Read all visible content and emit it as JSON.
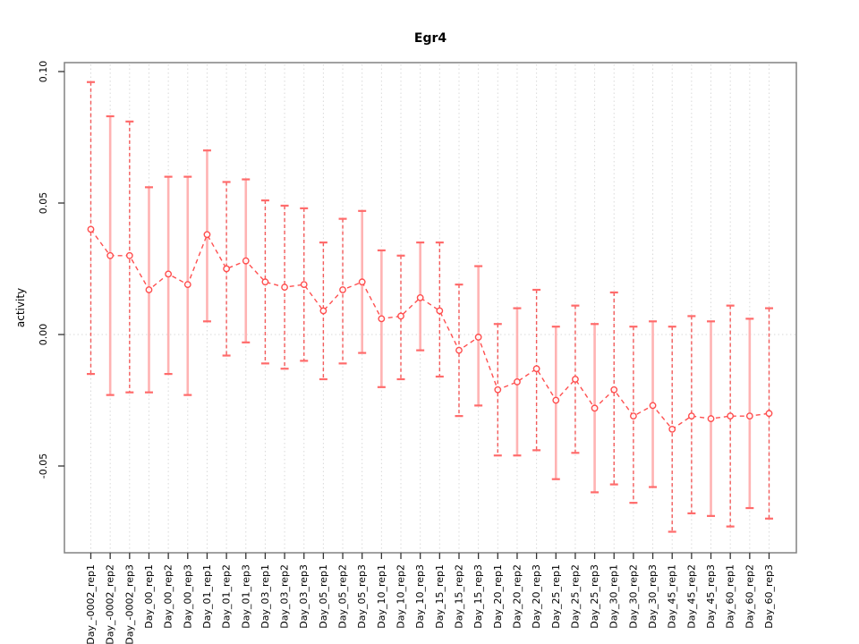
{
  "chart_data": {
    "type": "line",
    "subtype": "points-with-error-bars",
    "title": "Egr4",
    "xlabel": "",
    "ylabel": "activity",
    "ylim": [
      -0.083,
      0.103
    ],
    "yticks": [
      {
        "value": 0.1,
        "label": "0.10"
      },
      {
        "value": 0.05,
        "label": "0.05"
      },
      {
        "value": 0.0,
        "label": "0.00"
      },
      {
        "value": -0.05,
        "label": "-0.05"
      }
    ],
    "grid": "vertical-dotted-per-category",
    "zero_reference_line": true,
    "legend": "none",
    "categories": [
      "Day_-0002_rep1",
      "Day_-0002_rep2",
      "Day_-0002_rep3",
      "Day_00_rep1",
      "Day_00_rep2",
      "Day_00_rep3",
      "Day_01_rep1",
      "Day_01_rep2",
      "Day_01_rep3",
      "Day_03_rep1",
      "Day_03_rep2",
      "Day_03_rep3",
      "Day_05_rep1",
      "Day_05_rep2",
      "Day_05_rep3",
      "Day_10_rep1",
      "Day_10_rep2",
      "Day_10_rep3",
      "Day_15_rep1",
      "Day_15_rep2",
      "Day_15_rep3",
      "Day_20_rep1",
      "Day_20_rep2",
      "Day_20_rep3",
      "Day_25_rep1",
      "Day_25_rep2",
      "Day_25_rep3",
      "Day_30_rep1",
      "Day_30_rep2",
      "Day_30_rep3",
      "Day_45_rep1",
      "Day_45_rep2",
      "Day_45_rep3",
      "Day_60_rep1",
      "Day_60_rep2",
      "Day_60_rep3"
    ],
    "series": [
      {
        "name": "activity",
        "values": [
          0.04,
          0.03,
          0.03,
          0.017,
          0.023,
          0.019,
          0.038,
          0.025,
          0.028,
          0.02,
          0.018,
          0.019,
          0.009,
          0.017,
          0.02,
          0.006,
          0.007,
          0.014,
          0.009,
          -0.006,
          -0.001,
          -0.021,
          -0.018,
          -0.013,
          -0.025,
          -0.017,
          -0.028,
          -0.021,
          -0.031,
          -0.027,
          -0.036,
          -0.031,
          -0.032,
          -0.031,
          -0.031,
          -0.03
        ],
        "lower": [
          -0.015,
          -0.023,
          -0.022,
          -0.022,
          -0.015,
          -0.023,
          0.005,
          -0.008,
          -0.003,
          -0.011,
          -0.013,
          -0.01,
          -0.017,
          -0.011,
          -0.007,
          -0.02,
          -0.017,
          -0.006,
          -0.016,
          -0.031,
          -0.027,
          -0.046,
          -0.046,
          -0.044,
          -0.055,
          -0.045,
          -0.06,
          -0.057,
          -0.064,
          -0.058,
          -0.075,
          -0.068,
          -0.069,
          -0.073,
          -0.066,
          -0.07
        ],
        "upper": [
          0.096,
          0.083,
          0.081,
          0.056,
          0.06,
          0.06,
          0.07,
          0.058,
          0.059,
          0.051,
          0.049,
          0.048,
          0.035,
          0.044,
          0.047,
          0.032,
          0.03,
          0.035,
          0.035,
          0.019,
          0.026,
          0.004,
          0.01,
          0.017,
          0.003,
          0.011,
          0.004,
          0.016,
          0.003,
          0.005,
          0.003,
          0.007,
          0.005,
          0.011,
          0.006,
          0.01
        ],
        "bar_line_styles": [
          "dashed",
          "solid",
          "dashed",
          "solid",
          "solid",
          "solid",
          "solid",
          "dashed",
          "solid",
          "dashed",
          "dashed",
          "dashed",
          "dashed",
          "dashed",
          "solid",
          "solid",
          "dashed",
          "solid",
          "dashed",
          "dashed",
          "solid",
          "dashed",
          "solid",
          "dashed",
          "solid",
          "dashed",
          "solid",
          "dashed",
          "dashed",
          "solid",
          "dashed",
          "dashed",
          "solid",
          "dashed",
          "solid",
          "dashed"
        ]
      }
    ],
    "colors": {
      "point": "#ff4d4d",
      "connector": "#ff5050",
      "cap": "#ff6b6b",
      "bar_solid": "#ffb3b3",
      "bar_dashed": "#f25b5b",
      "grid": "#d9d9d9",
      "box": "#828282",
      "tick": "#333333",
      "text": "#000000",
      "background": "#ffffff"
    }
  }
}
